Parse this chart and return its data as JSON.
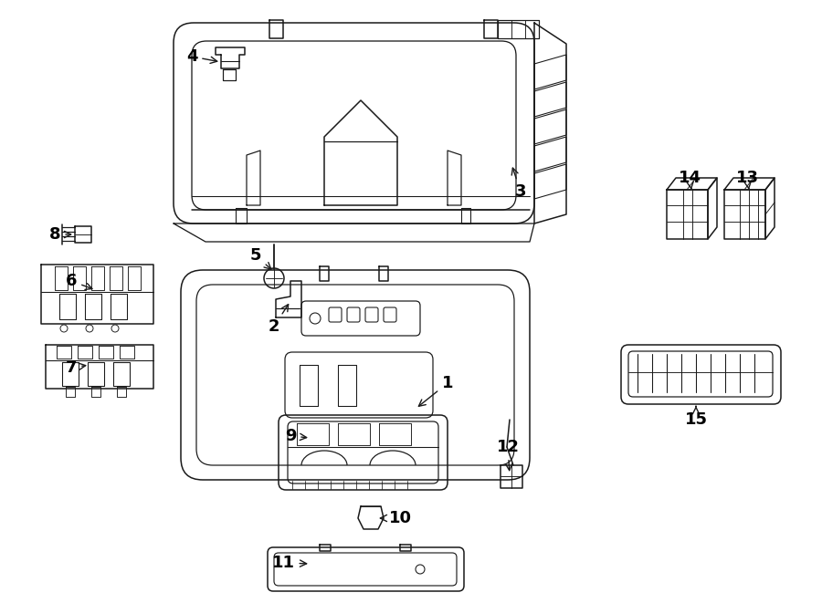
{
  "bg_color": "#ffffff",
  "line_color": "#1a1a1a",
  "label_color": "#000000",
  "figsize": [
    9.0,
    6.61
  ],
  "dpi": 100,
  "lw": 1.1
}
